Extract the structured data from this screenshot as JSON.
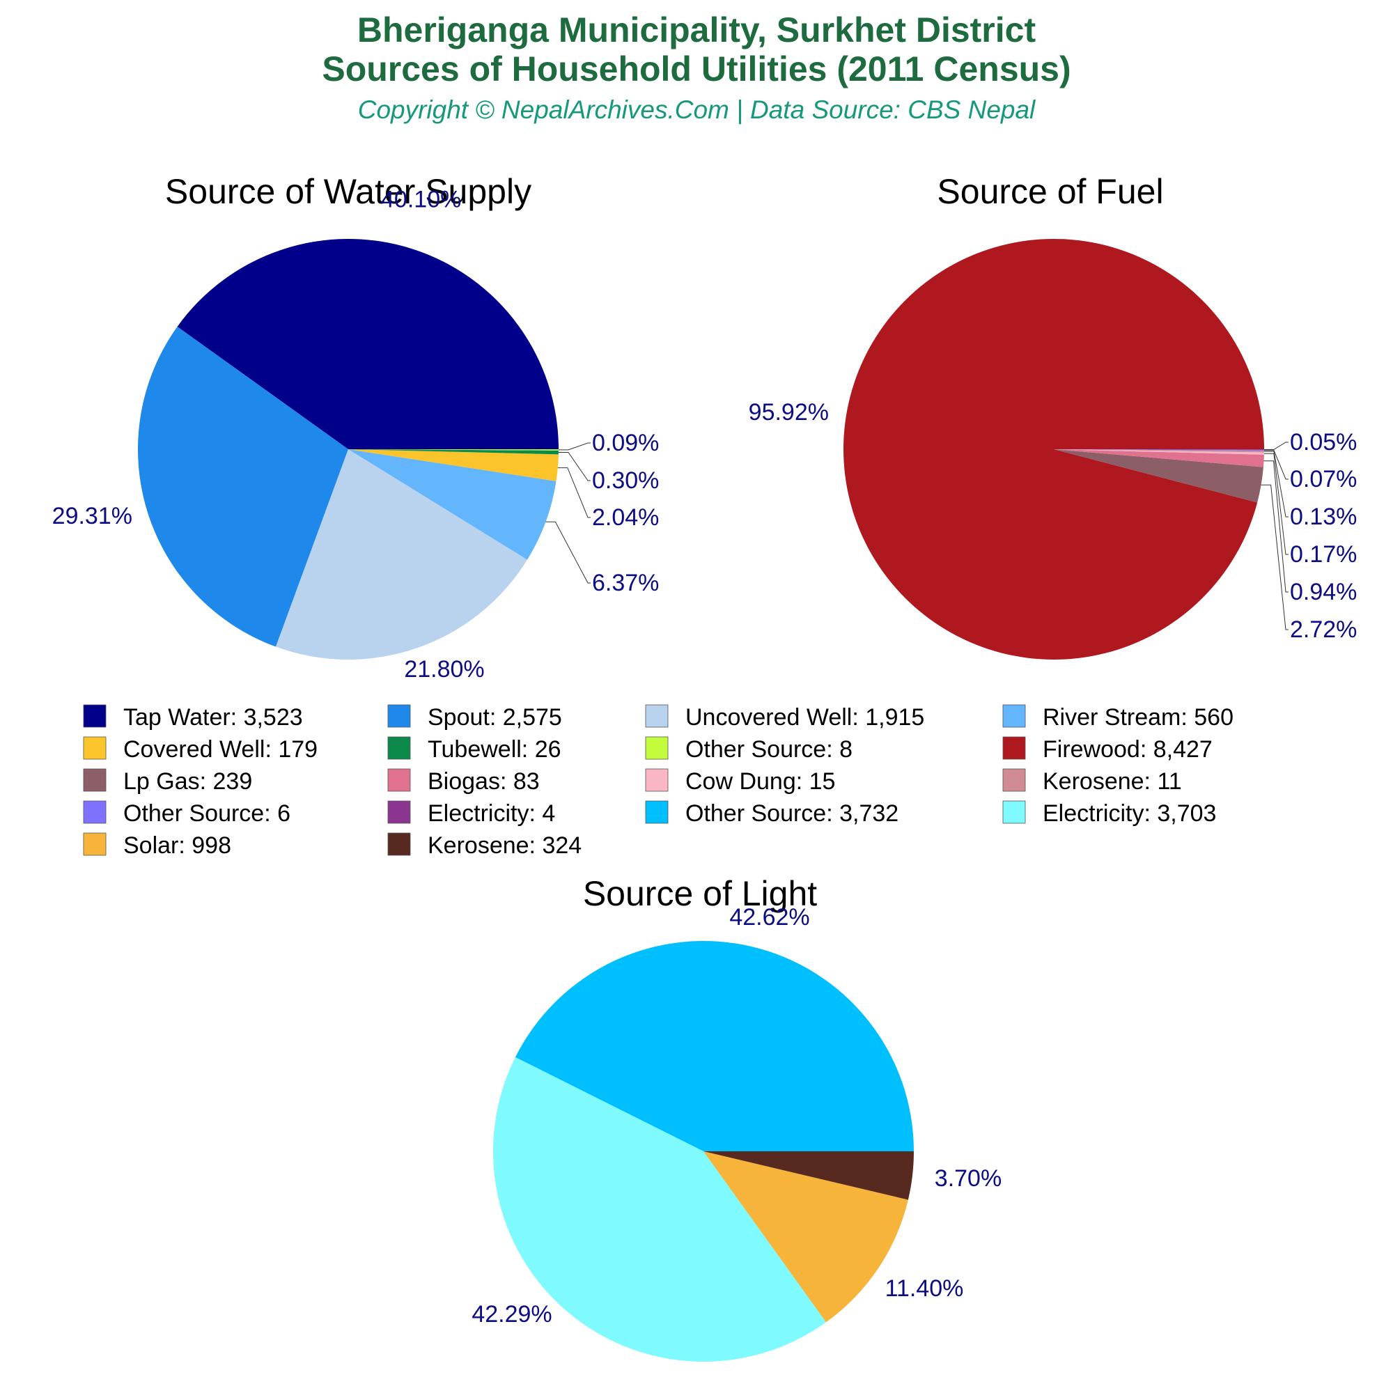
{
  "header": {
    "title_line1": "Bheriganga Municipality, Surkhet District",
    "title_line2": "Sources of Household Utilities (2011 Census)",
    "subtitle": "Copyright © NepalArchives.Com | Data Source: CBS Nepal"
  },
  "chart_data": [
    {
      "type": "pie",
      "title": "Source of Water Supply",
      "slices": [
        {
          "label": "Tap Water",
          "value": 3523,
          "value_label": "3,523",
          "percent_label": "40.10%",
          "color": "#00008b"
        },
        {
          "label": "Spout",
          "value": 2575,
          "value_label": "2,575",
          "percent_label": "29.31%",
          "color": "#1e88eb"
        },
        {
          "label": "Uncovered Well",
          "value": 1915,
          "value_label": "1,915",
          "percent_label": "21.80%",
          "color": "#b9d2ee"
        },
        {
          "label": "River Stream",
          "value": 560,
          "value_label": "560",
          "percent_label": "6.37%",
          "color": "#63b6fc"
        },
        {
          "label": "Covered Well",
          "value": 179,
          "value_label": "179",
          "percent_label": "2.04%",
          "color": "#fcc42b"
        },
        {
          "label": "Tubewell",
          "value": 26,
          "value_label": "26",
          "percent_label": "0.30%",
          "color": "#0b8a49"
        },
        {
          "label": "Other Source",
          "value": 8,
          "value_label": "8",
          "percent_label": "0.09%",
          "color": "#c3fc3a"
        }
      ]
    },
    {
      "type": "pie",
      "title": "Source of Fuel",
      "slices": [
        {
          "label": "Firewood",
          "value": 8427,
          "value_label": "8,427",
          "percent_label": "95.92%",
          "color": "#b01820"
        },
        {
          "label": "Lp Gas",
          "value": 239,
          "value_label": "239",
          "percent_label": "2.72%",
          "color": "#8c5e67"
        },
        {
          "label": "Biogas",
          "value": 83,
          "value_label": "83",
          "percent_label": "0.94%",
          "color": "#e0718f"
        },
        {
          "label": "Cow Dung",
          "value": 15,
          "value_label": "15",
          "percent_label": "0.17%",
          "color": "#fbb6c6"
        },
        {
          "label": "Kerosene",
          "value": 11,
          "value_label": "11",
          "percent_label": "0.13%",
          "color": "#d18b94"
        },
        {
          "label": "Other Source",
          "value": 6,
          "value_label": "6",
          "percent_label": "0.07%",
          "color": "#7e71fd"
        },
        {
          "label": "Electricity",
          "value": 4,
          "value_label": "4",
          "percent_label": "0.05%",
          "color": "#8b3591"
        }
      ]
    },
    {
      "type": "pie",
      "title": "Source of Light",
      "slices": [
        {
          "label": "Other Source",
          "value": 3732,
          "value_label": "3,732",
          "percent_label": "42.62%",
          "color": "#00bfff"
        },
        {
          "label": "Electricity",
          "value": 3703,
          "value_label": "3,703",
          "percent_label": "42.29%",
          "color": "#7ffaff"
        },
        {
          "label": "Solar",
          "value": 998,
          "value_label": "998",
          "percent_label": "11.40%",
          "color": "#f6b43a"
        },
        {
          "label": "Kerosene",
          "value": 324,
          "value_label": "324",
          "percent_label": "3.70%",
          "color": "#58291f"
        }
      ]
    }
  ],
  "legend": [
    {
      "label": "Tap Water: 3,523",
      "color": "#00008b"
    },
    {
      "label": "Spout: 2,575",
      "color": "#1e88eb"
    },
    {
      "label": "Uncovered Well: 1,915",
      "color": "#b9d2ee"
    },
    {
      "label": "River Stream: 560",
      "color": "#63b6fc"
    },
    {
      "label": "Covered Well: 179",
      "color": "#fcc42b"
    },
    {
      "label": "Tubewell: 26",
      "color": "#0b8a49"
    },
    {
      "label": "Other Source: 8",
      "color": "#c3fc3a"
    },
    {
      "label": "Firewood: 8,427",
      "color": "#b01820"
    },
    {
      "label": "Lp Gas: 239",
      "color": "#8c5e67"
    },
    {
      "label": "Biogas: 83",
      "color": "#e0718f"
    },
    {
      "label": "Cow Dung: 15",
      "color": "#fbb6c6"
    },
    {
      "label": "Kerosene: 11",
      "color": "#d18b94"
    },
    {
      "label": "Other Source: 6",
      "color": "#7e71fd"
    },
    {
      "label": "Electricity: 4",
      "color": "#8b3591"
    },
    {
      "label": "Other Source: 3,732",
      "color": "#00bfff"
    },
    {
      "label": "Electricity: 3,703",
      "color": "#7ffaff"
    },
    {
      "label": "Solar: 998",
      "color": "#f6b43a"
    },
    {
      "label": "Kerosene: 324",
      "color": "#58291f"
    }
  ]
}
